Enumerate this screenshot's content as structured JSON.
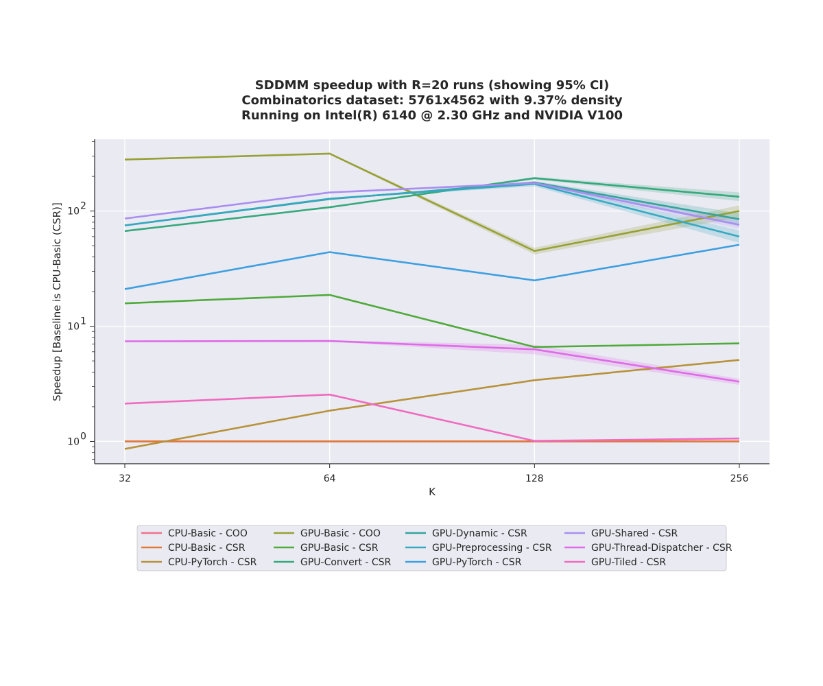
{
  "chart_data": {
    "type": "line",
    "title_lines": [
      "SDDMM speedup with R=20 runs (showing 95% CI)",
      "Combinatorics dataset: 5761x4562 with 9.37% density",
      "Running on Intel(R) 6140 @ 2.30 GHz and NVIDIA V100"
    ],
    "xlabel": "K",
    "ylabel": "Speedup [Baseline is CPU-Basic (CSR)]",
    "x": [
      32,
      64,
      128,
      256
    ],
    "x_ticks": [
      "32",
      "64",
      "128",
      "256"
    ],
    "x_scale": "log2",
    "y_scale": "log",
    "ylim": [
      0.64,
      420
    ],
    "y_major_ticks": [
      {
        "value": 1,
        "base": "10",
        "exp": "0"
      },
      {
        "value": 10,
        "base": "10",
        "exp": "1"
      },
      {
        "value": 100,
        "base": "10",
        "exp": "2"
      }
    ],
    "grid": true,
    "legend_position": "below",
    "legend_columns": 4,
    "series": [
      {
        "name": "CPU-Basic - COO",
        "color": "#f0718a",
        "values": [
          1.0,
          1.0,
          1.0,
          1.0
        ],
        "ci": null
      },
      {
        "name": "CPU-Basic - CSR",
        "color": "#e07a3a",
        "values": [
          1.0,
          1.0,
          1.0,
          1.0
        ],
        "ci": null
      },
      {
        "name": "CPU-PyTorch - CSR",
        "color": "#b8923a",
        "values": [
          0.86,
          1.85,
          3.4,
          5.1
        ],
        "ci": null
      },
      {
        "name": "GPU-Basic - COO",
        "color": "#97a034",
        "values": [
          280,
          315,
          45,
          100
        ],
        "ci": [
          [
            275,
            285
          ],
          [
            310,
            320
          ],
          [
            42,
            48
          ],
          [
            88,
            112
          ]
        ]
      },
      {
        "name": "GPU-Basic - CSR",
        "color": "#4faa3a",
        "values": [
          15.8,
          18.7,
          6.6,
          7.1
        ],
        "ci": null
      },
      {
        "name": "GPU-Convert - CSR",
        "color": "#35a97c",
        "values": [
          67,
          108,
          193,
          133
        ],
        "ci": [
          [
            66,
            68
          ],
          [
            107,
            109
          ],
          [
            188,
            198
          ],
          [
            122,
            145
          ]
        ]
      },
      {
        "name": "GPU-Dynamic - CSR",
        "color": "#34a39c",
        "values": [
          75,
          127,
          177,
          85
        ],
        "ci": [
          [
            74,
            76
          ],
          [
            126,
            128
          ],
          [
            172,
            182
          ],
          [
            74,
            96
          ]
        ]
      },
      {
        "name": "GPU-Preprocessing - CSR",
        "color": "#36a8c0",
        "values": [
          75,
          128,
          172,
          60
        ],
        "ci": [
          [
            74,
            76
          ],
          [
            127,
            129
          ],
          [
            164,
            180
          ],
          [
            53,
            68
          ]
        ]
      },
      {
        "name": "GPU-PyTorch - CSR",
        "color": "#3d9fe0",
        "values": [
          21,
          44,
          25,
          51
        ],
        "ci": null
      },
      {
        "name": "GPU-Shared - CSR",
        "color": "#a88ef0",
        "values": [
          86,
          145,
          175,
          76
        ],
        "ci": [
          [
            85,
            87
          ],
          [
            144,
            146
          ],
          [
            170,
            180
          ],
          [
            70,
            84
          ]
        ]
      },
      {
        "name": "GPU-Thread-Dispatcher - CSR",
        "color": "#de6ae6",
        "values": [
          7.4,
          7.45,
          6.3,
          3.3
        ],
        "ci": [
          [
            7.3,
            7.5
          ],
          [
            7.35,
            7.55
          ],
          [
            5.7,
            6.9
          ],
          [
            3.1,
            3.5
          ]
        ]
      },
      {
        "name": "GPU-Tiled - CSR",
        "color": "#ef6bbf",
        "values": [
          2.13,
          2.55,
          1.01,
          1.06
        ],
        "ci": null
      }
    ]
  }
}
